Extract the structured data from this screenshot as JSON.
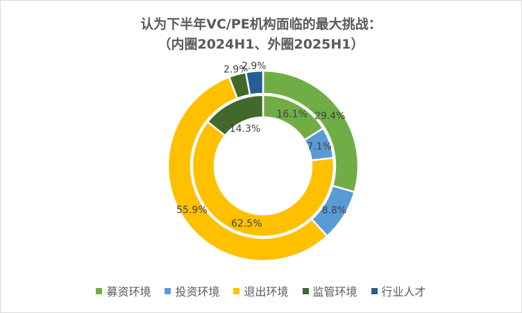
{
  "chart_data": {
    "type": "doughnut",
    "title": "认为下半年VC/PE机构面临的最大挑战：",
    "subtitle": "（内圈2024H1、外圈2025H1）",
    "categories": [
      "募资环境",
      "投资环境",
      "退出环境",
      "监管环境",
      "行业人才"
    ],
    "colors": [
      "#70AD47",
      "#5B9BD5",
      "#FFC000",
      "#43682B",
      "#255E91"
    ],
    "series": [
      {
        "name": "2024H1",
        "ring": "inner",
        "values": [
          16.1,
          7.1,
          62.5,
          14.3,
          null
        ],
        "labels": [
          "16.1%",
          "7.1%",
          "62.5%",
          "14.3%",
          ""
        ]
      },
      {
        "name": "2025H1",
        "ring": "outer",
        "values": [
          29.4,
          8.8,
          55.9,
          2.9,
          2.9
        ],
        "labels": [
          "29.4%",
          "8.8%",
          "55.9%",
          "2.9%",
          "2.9%"
        ]
      }
    ],
    "legend_position": "bottom"
  }
}
